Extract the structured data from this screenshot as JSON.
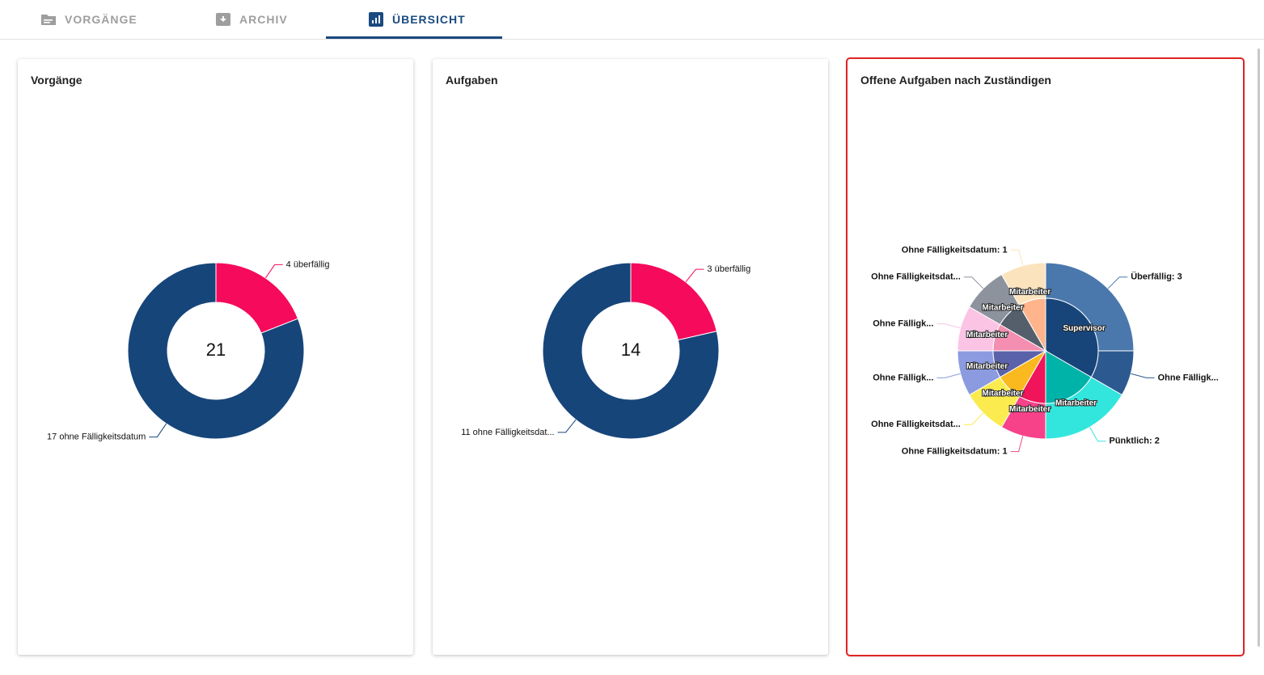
{
  "tabs": [
    {
      "label": "VORGÄNGE",
      "active": false
    },
    {
      "label": "ARCHIV",
      "active": false
    },
    {
      "label": "ÜBERSICHT",
      "active": true
    }
  ],
  "chart_data": [
    {
      "type": "donut",
      "title": "Vorgänge",
      "total": 21,
      "values": [
        4,
        17
      ],
      "value_labels": [
        "4 überfällig",
        "17 ohne Fälligkeitsdatum"
      ],
      "colors": [
        "#f50a5c",
        "#16457a"
      ]
    },
    {
      "type": "donut",
      "title": "Aufgaben",
      "total": 14,
      "values": [
        3,
        11
      ],
      "value_labels": [
        "3 überfällig",
        "11 ohne Fälligkeitsdat..."
      ],
      "colors": [
        "#f50a5c",
        "#16457a"
      ]
    },
    {
      "type": "sunburst",
      "title": "Offene Aufgaben nach Zuständigen",
      "groups": [
        {
          "name": "Supervisor",
          "color": "#17457a",
          "children": [
            {
              "label": "Überfällig: 3",
              "value": 3,
              "color": "#4a78ad"
            },
            {
              "label": "Ohne Fälligk...",
              "value": 1,
              "color": "#2c5a90"
            }
          ]
        },
        {
          "name": "Mitarbeiter",
          "color": "#00b3a8",
          "children": [
            {
              "label": "Pünktlich: 2",
              "value": 2,
              "color": "#33e6dd"
            }
          ]
        },
        {
          "name": "Mitarbeiter",
          "color": "#f0145a",
          "children": [
            {
              "label": "Ohne Fälligkeitsdatum: 1",
              "value": 1,
              "color": "#f7428a"
            }
          ]
        },
        {
          "name": "Mitarbeiter",
          "color": "#f9b91f",
          "children": [
            {
              "label": "Ohne Fälligkeitsdat...",
              "value": 1,
              "color": "#fbeb4f"
            }
          ]
        },
        {
          "name": "Mitarbeiter",
          "color": "#5a62aa",
          "children": [
            {
              "label": "Ohne Fälligk...",
              "value": 1,
              "color": "#8c9be0"
            }
          ]
        },
        {
          "name": "Mitarbeiter",
          "color": "#f48fb1",
          "children": [
            {
              "label": "Ohne Fälligk...",
              "value": 1,
              "color": "#fbc4e4"
            }
          ]
        },
        {
          "name": "Mitarbeiter",
          "color": "#555f6b",
          "children": [
            {
              "label": "Ohne Fälligkeitsdat...",
              "value": 1,
              "color": "#8d939d"
            }
          ]
        },
        {
          "name": "Mitarbeiter",
          "color": "#ffb48c",
          "children": [
            {
              "label": "Ohne Fälligkeitsdatum: 1",
              "value": 1,
              "color": "#fbe3bd"
            }
          ]
        }
      ]
    }
  ]
}
